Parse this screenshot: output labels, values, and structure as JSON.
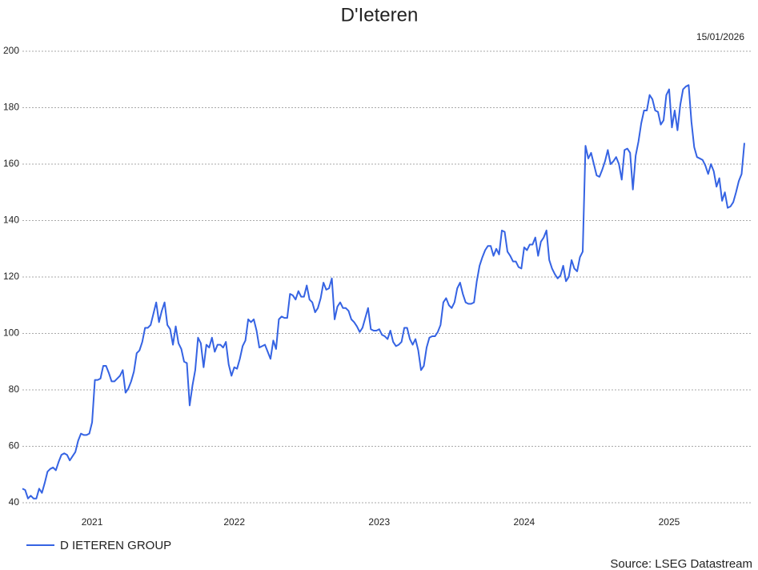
{
  "chart_data": {
    "type": "line",
    "title": "D'Ieteren",
    "date": "15/01/2026",
    "source": "Source: LSEG Datastream",
    "categories": [
      null,
      null,
      null,
      null,
      null,
      null,
      null,
      null,
      null,
      null,
      null,
      null,
      null,
      null,
      null,
      null,
      null,
      null,
      null,
      null,
      null,
      null,
      null,
      null,
      null,
      "2021",
      null,
      null,
      null,
      null,
      null,
      null,
      null,
      null,
      null,
      null,
      null,
      null,
      null,
      null,
      null,
      null,
      null,
      null,
      null,
      null,
      null,
      null,
      null,
      null,
      null,
      null,
      null,
      null,
      null,
      null,
      null,
      null,
      null,
      null,
      null,
      null,
      null,
      null,
      null,
      null,
      null,
      null,
      null,
      null,
      null,
      null,
      null,
      null,
      null,
      null,
      "2022",
      null,
      null,
      null,
      null,
      null,
      null,
      null,
      null,
      null,
      null,
      null,
      null,
      null,
      null,
      null,
      null,
      null,
      null,
      null,
      null,
      null,
      null,
      null,
      null,
      null,
      null,
      null,
      null,
      null,
      null,
      null,
      null,
      null,
      null,
      null,
      null,
      null,
      null,
      null,
      null,
      null,
      null,
      null,
      null,
      null,
      null,
      null,
      null,
      null,
      null,
      null,
      "2023",
      null,
      null,
      null,
      null,
      null,
      null,
      null,
      null,
      null,
      null,
      null,
      null,
      null,
      null,
      null,
      null,
      null,
      null,
      null,
      null,
      null,
      null,
      null,
      null,
      null,
      null,
      null,
      null,
      null,
      null,
      null,
      null,
      null,
      null,
      null,
      null,
      null,
      null,
      null,
      null,
      null,
      null,
      null,
      null,
      null,
      null,
      null,
      null,
      null,
      null,
      null,
      "2024",
      null,
      null,
      null,
      null,
      null,
      null,
      null,
      null,
      null,
      null,
      null,
      null,
      null,
      null,
      null,
      null,
      null,
      null,
      null,
      null,
      null,
      null,
      null,
      null,
      null,
      null,
      null,
      null,
      null,
      null,
      null,
      null,
      null,
      null,
      null,
      null,
      null,
      null,
      null,
      null,
      null,
      null,
      null,
      null,
      null,
      null,
      null,
      null,
      null,
      null,
      null,
      "2025",
      null,
      null,
      null,
      null,
      null,
      null,
      null,
      null,
      null,
      null,
      null,
      null,
      null,
      null,
      null,
      null,
      null,
      null,
      null,
      null,
      null,
      null,
      null,
      null,
      null,
      null,
      null
    ],
    "series": [
      {
        "name": "D IETEREN GROUP",
        "color": "#3563e3",
        "values": [
          45,
          44.5,
          41.5,
          42.5,
          41.5,
          41.5,
          45,
          43.5,
          47,
          51,
          52,
          52.5,
          51.5,
          54.5,
          57,
          57.5,
          57,
          55,
          56.5,
          58,
          62,
          64.5,
          64,
          64,
          64.5,
          68.5,
          83.5,
          83.5,
          84,
          88.5,
          88.5,
          86,
          83,
          83,
          84,
          85,
          87,
          79,
          80.5,
          83,
          86.5,
          93,
          94,
          97,
          102,
          102,
          103,
          107,
          111,
          104,
          108,
          111,
          103,
          101.5,
          96,
          102.5,
          96.5,
          94.5,
          90,
          89.5,
          74.5,
          81.5,
          87,
          98.5,
          96.5,
          88,
          96,
          95,
          98.5,
          93.5,
          96,
          96,
          95,
          97,
          89,
          85,
          88,
          87.5,
          91,
          95.5,
          97.5,
          105,
          104,
          105,
          101,
          95,
          95.5,
          96,
          93.5,
          91,
          97.5,
          94.5,
          105,
          106,
          105.5,
          105.5,
          114,
          113.5,
          112,
          115,
          113,
          113,
          117,
          112,
          111,
          107.5,
          109,
          112.5,
          118,
          115.5,
          116,
          119.5,
          105,
          109.5,
          111,
          109,
          109,
          108,
          105,
          104,
          102.5,
          100.5,
          102,
          105.5,
          109,
          101.5,
          101,
          101,
          101.5,
          99.5,
          99,
          98,
          101,
          97,
          95.5,
          96,
          97,
          102,
          102,
          98,
          96,
          98,
          94,
          87,
          88.5,
          95,
          98.5,
          99,
          99,
          100.5,
          103,
          111,
          112.5,
          110,
          109,
          111,
          116,
          118,
          114,
          111,
          110.5,
          110.5,
          111,
          118.5,
          124,
          127,
          129.5,
          131,
          131,
          127.5,
          130,
          128,
          136.5,
          136,
          129,
          127.5,
          125.5,
          125.5,
          123.5,
          123,
          130.5,
          129.5,
          131.5,
          131.5,
          134,
          127.5,
          132.5,
          134,
          136.5,
          126,
          123,
          121,
          119.5,
          120.5,
          124,
          118.5,
          120,
          126,
          123,
          122,
          127,
          129,
          166.5,
          162,
          164,
          160,
          156,
          155.5,
          158,
          161,
          165,
          160,
          161,
          162.5,
          160,
          154.5,
          165,
          165.5,
          164,
          151,
          163,
          168,
          174.5,
          179,
          179,
          184.5,
          183,
          179,
          178.5,
          174,
          175.5,
          184.5,
          186.5,
          173,
          179,
          172,
          181,
          186.5,
          187.5,
          188,
          175,
          166,
          162.5,
          162,
          161.5,
          159.5,
          156.5,
          160,
          157.5,
          152,
          155,
          147,
          150,
          144.5,
          145,
          146.5,
          150,
          154,
          156.5,
          167.5
        ]
      }
    ],
    "ylim": [
      40,
      200
    ],
    "yticks": [
      40,
      60,
      80,
      100,
      120,
      140,
      160,
      180,
      200
    ],
    "grid": true
  }
}
